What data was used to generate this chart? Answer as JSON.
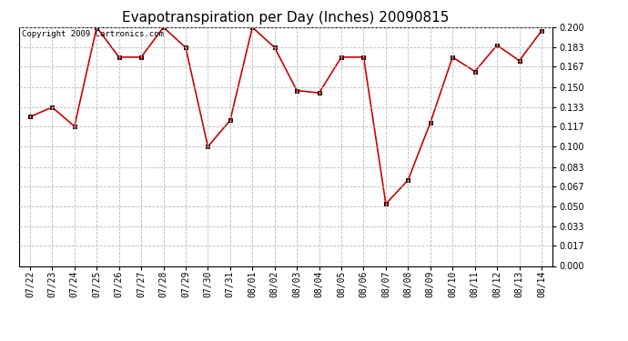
{
  "title": "Evapotranspiration per Day (Inches) 20090815",
  "copyright_text": "Copyright 2009 Cartronics.com",
  "x_labels": [
    "07/22",
    "07/23",
    "07/24",
    "07/25",
    "07/26",
    "07/27",
    "07/28",
    "07/29",
    "07/30",
    "07/31",
    "08/01",
    "08/02",
    "08/03",
    "08/04",
    "08/05",
    "08/06",
    "08/07",
    "08/08",
    "08/09",
    "08/10",
    "08/11",
    "08/12",
    "08/13",
    "08/14"
  ],
  "y_values": [
    0.125,
    0.133,
    0.117,
    0.2,
    0.175,
    0.175,
    0.2,
    0.183,
    0.1,
    0.122,
    0.2,
    0.183,
    0.147,
    0.145,
    0.175,
    0.175,
    0.052,
    0.072,
    0.12,
    0.175,
    0.163,
    0.185,
    0.172,
    0.197
  ],
  "ylim": [
    0.0,
    0.2
  ],
  "yticks": [
    0.0,
    0.017,
    0.033,
    0.05,
    0.067,
    0.083,
    0.1,
    0.117,
    0.133,
    0.15,
    0.167,
    0.183,
    0.2
  ],
  "line_color": "#cc0000",
  "marker": "s",
  "marker_size": 3,
  "marker_color": "#cc0000",
  "marker_edge_color": "#000000",
  "bg_color": "#ffffff",
  "grid_color": "#bbbbbb",
  "title_fontsize": 11,
  "tick_fontsize": 7,
  "copyright_fontsize": 6.5
}
